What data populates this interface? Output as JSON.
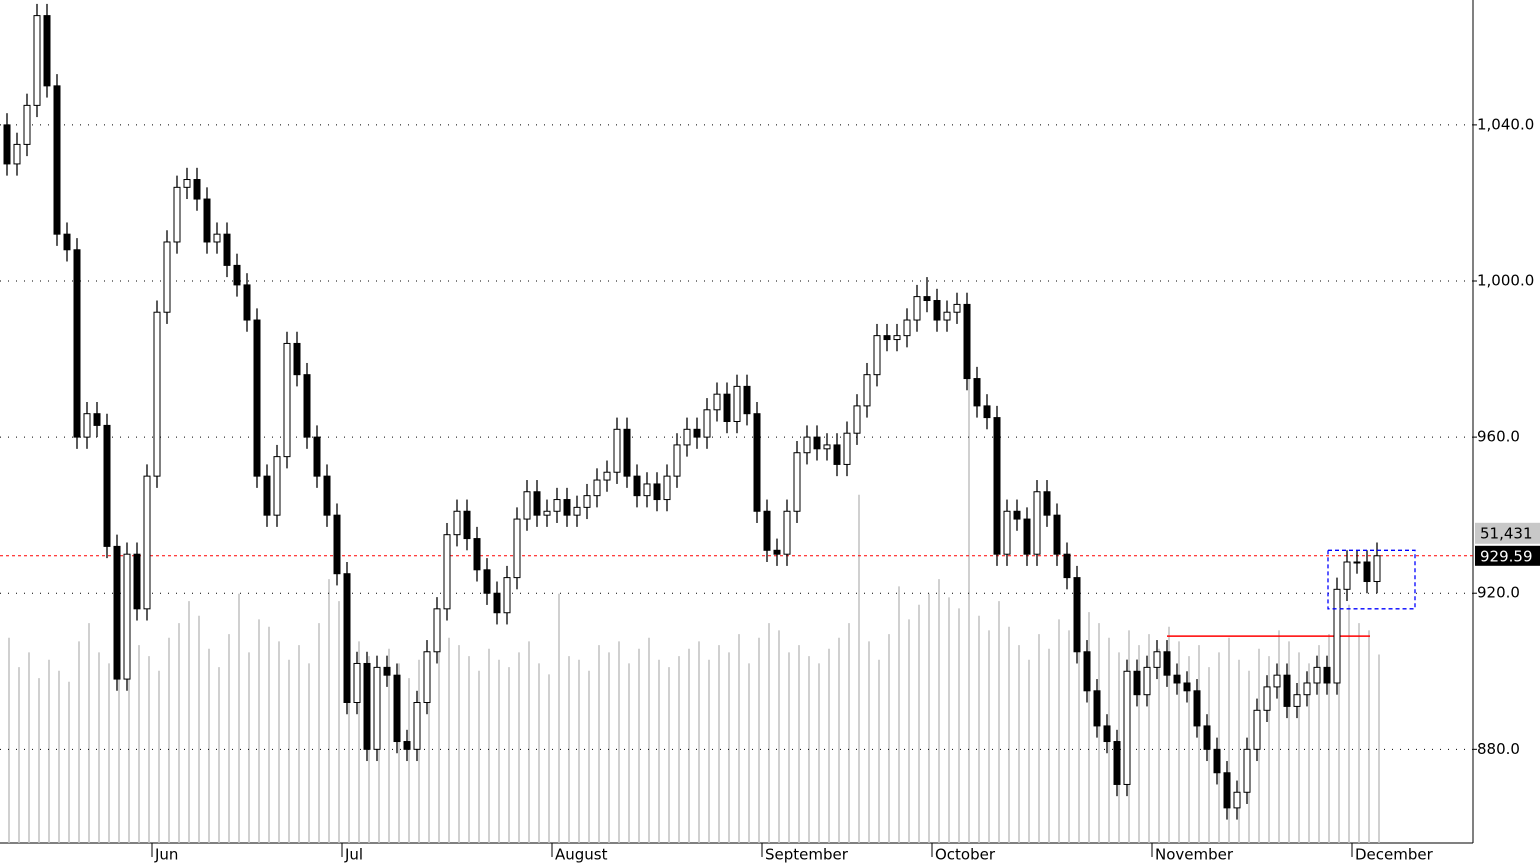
{
  "chart_data": {
    "type": "candlestick",
    "categories": [
      null,
      null,
      null,
      null,
      null,
      null,
      null,
      null,
      null,
      null,
      null,
      null,
      null,
      null,
      null,
      "Jun",
      null,
      null,
      null,
      null,
      null,
      null,
      null,
      null,
      null,
      null,
      null,
      null,
      null,
      null,
      null,
      null,
      null,
      null,
      "Jul",
      null,
      null,
      null,
      null,
      null,
      null,
      null,
      null,
      null,
      null,
      null,
      null,
      null,
      null,
      null,
      null,
      null,
      null,
      null,
      null,
      "August",
      null,
      null,
      null,
      null,
      null,
      null,
      null,
      null,
      null,
      null,
      null,
      null,
      null,
      null,
      null,
      null,
      null,
      null,
      null,
      null,
      "September",
      null,
      null,
      null,
      null,
      null,
      null,
      null,
      null,
      null,
      null,
      null,
      null,
      null,
      null,
      null,
      null,
      "October",
      null,
      null,
      null,
      null,
      null,
      null,
      null,
      null,
      null,
      null,
      null,
      null,
      null,
      null,
      null,
      null,
      null,
      null,
      null,
      null,
      null,
      "November",
      null,
      null,
      null,
      null,
      null,
      null,
      null,
      null,
      null,
      null,
      null,
      null,
      null,
      null,
      null,
      null,
      null,
      null,
      null,
      "December",
      null,
      null
    ],
    "open": [
      1040,
      1030,
      1035,
      1045,
      1068,
      1050,
      1012,
      1008,
      960,
      966,
      963,
      932,
      898,
      930,
      916,
      950,
      992,
      1010,
      1024,
      1026,
      1021,
      1010,
      1012,
      1004,
      999,
      990,
      950,
      940,
      955,
      984,
      976,
      960,
      950,
      940,
      925,
      892,
      902,
      880,
      901,
      899,
      882,
      880,
      892,
      905,
      916,
      935,
      941,
      934,
      926,
      920,
      915,
      924,
      939,
      946,
      940,
      941,
      944,
      940,
      942,
      945,
      949,
      951,
      962,
      950,
      945,
      948,
      944,
      950,
      958,
      962,
      960,
      967,
      971,
      964,
      973,
      966,
      941,
      931,
      930,
      941,
      956,
      960,
      957,
      958,
      953,
      961,
      968,
      976,
      986,
      985,
      986,
      990,
      996,
      995,
      990,
      992,
      994,
      975,
      968,
      965,
      930,
      941,
      939,
      930,
      946,
      940,
      930,
      924,
      905,
      895,
      886,
      882,
      871,
      900,
      894,
      901,
      905,
      899,
      897,
      895,
      886,
      880,
      874,
      865,
      869,
      880,
      890,
      896,
      899,
      891,
      894,
      897,
      901,
      897,
      921,
      928,
      928,
      923
    ],
    "high": [
      1043,
      1038,
      1048,
      1071,
      1071,
      1053,
      1015,
      1011,
      969,
      969,
      966,
      935,
      933,
      933,
      953,
      995,
      1013,
      1027,
      1029,
      1029,
      1024,
      1015,
      1015,
      1007,
      1002,
      993,
      953,
      958,
      987,
      987,
      979,
      963,
      953,
      943,
      928,
      905,
      905,
      904,
      904,
      902,
      885,
      895,
      908,
      919,
      938,
      944,
      944,
      937,
      929,
      923,
      927,
      942,
      949,
      949,
      944,
      947,
      947,
      945,
      948,
      952,
      954,
      965,
      965,
      953,
      951,
      951,
      953,
      961,
      965,
      965,
      970,
      974,
      974,
      976,
      976,
      969,
      944,
      934,
      944,
      959,
      963,
      963,
      961,
      961,
      964,
      971,
      979,
      989,
      989,
      989,
      993,
      999,
      1001,
      998,
      995,
      997,
      997,
      978,
      971,
      968,
      944,
      944,
      942,
      949,
      949,
      943,
      933,
      927,
      908,
      898,
      889,
      885,
      903,
      903,
      904,
      908,
      908,
      902,
      900,
      898,
      889,
      883,
      877,
      872,
      883,
      893,
      899,
      902,
      902,
      897,
      900,
      904,
      904,
      924,
      931,
      931,
      931,
      933
    ],
    "low": [
      1027,
      1027,
      1032,
      1042,
      1047,
      1009,
      1005,
      957,
      957,
      960,
      929,
      895,
      895,
      913,
      913,
      947,
      989,
      1007,
      1021,
      1018,
      1007,
      1007,
      1001,
      996,
      987,
      947,
      937,
      937,
      952,
      973,
      957,
      947,
      937,
      922,
      889,
      889,
      877,
      877,
      896,
      879,
      877,
      877,
      889,
      902,
      913,
      932,
      931,
      923,
      917,
      912,
      912,
      921,
      936,
      937,
      937,
      938,
      937,
      937,
      939,
      942,
      946,
      948,
      947,
      942,
      942,
      941,
      941,
      947,
      955,
      957,
      957,
      964,
      961,
      961,
      963,
      938,
      928,
      927,
      927,
      938,
      953,
      954,
      954,
      950,
      950,
      958,
      965,
      973,
      982,
      982,
      983,
      987,
      992,
      987,
      987,
      989,
      972,
      965,
      962,
      927,
      927,
      936,
      927,
      927,
      937,
      927,
      921,
      902,
      892,
      883,
      879,
      868,
      868,
      891,
      891,
      898,
      896,
      894,
      892,
      883,
      877,
      871,
      862,
      862,
      866,
      877,
      887,
      893,
      888,
      888,
      891,
      894,
      894,
      894,
      918,
      925,
      920,
      920
    ],
    "close": [
      1030,
      1035,
      1045,
      1068,
      1050,
      1012,
      1008,
      960,
      966,
      963,
      932,
      898,
      930,
      916,
      950,
      992,
      1010,
      1024,
      1026,
      1021,
      1010,
      1012,
      1004,
      999,
      990,
      950,
      940,
      955,
      984,
      976,
      960,
      950,
      940,
      925,
      892,
      902,
      880,
      901,
      899,
      882,
      880,
      892,
      905,
      916,
      935,
      941,
      934,
      926,
      920,
      915,
      924,
      939,
      946,
      940,
      941,
      944,
      940,
      942,
      945,
      949,
      951,
      962,
      950,
      945,
      948,
      944,
      950,
      958,
      962,
      960,
      967,
      971,
      964,
      973,
      966,
      941,
      931,
      930,
      941,
      956,
      960,
      957,
      958,
      953,
      961,
      968,
      976,
      986,
      985,
      986,
      990,
      996,
      995,
      990,
      992,
      994,
      975,
      968,
      965,
      930,
      941,
      939,
      930,
      946,
      940,
      930,
      924,
      905,
      895,
      886,
      882,
      871,
      900,
      894,
      901,
      905,
      899,
      897,
      895,
      886,
      880,
      874,
      865,
      869,
      880,
      890,
      896,
      899,
      891,
      894,
      897,
      901,
      897,
      921,
      928,
      928,
      923,
      929.59
    ],
    "volume": [
      56000,
      48000,
      52000,
      45000,
      50000,
      47000,
      44000,
      55000,
      60000,
      52000,
      49000,
      63000,
      58000,
      54000,
      51000,
      47000,
      56000,
      60000,
      66000,
      62000,
      53000,
      48000,
      57000,
      68000,
      52000,
      61000,
      59000,
      55000,
      50000,
      54000,
      49000,
      60000,
      72000,
      66000,
      58000,
      55000,
      51000,
      47000,
      53000,
      49000,
      45000,
      50000,
      48000,
      52000,
      56000,
      54000,
      51000,
      47000,
      53000,
      50000,
      48000,
      52000,
      55000,
      49000,
      46000,
      68000,
      51000,
      50000,
      47000,
      54000,
      52000,
      55000,
      49000,
      53000,
      56000,
      50000,
      48000,
      51000,
      53000,
      55000,
      50000,
      54000,
      52000,
      57000,
      49000,
      56000,
      60000,
      58000,
      52000,
      54000,
      51000,
      49000,
      53000,
      56000,
      60000,
      95000,
      55000,
      50000,
      57000,
      70000,
      61000,
      65000,
      68000,
      72000,
      67000,
      64000,
      129000,
      62000,
      58000,
      66000,
      59000,
      54000,
      50000,
      57000,
      53000,
      61000,
      58000,
      55000,
      63000,
      60000,
      56000,
      52000,
      58000,
      54000,
      57000,
      53000,
      59000,
      55000,
      51000,
      54000,
      48000,
      52000,
      56000,
      50000,
      47000,
      53000,
      51000,
      58000,
      55000,
      52000,
      49000,
      54000,
      57000,
      55000,
      65000,
      60000,
      58000,
      51431
    ],
    "ylim": [
      856,
      1072
    ],
    "yticks": [
      {
        "value": 880,
        "label": "880.0"
      },
      {
        "value": 920,
        "label": "920.0"
      },
      {
        "value": 960,
        "label": "960.0"
      },
      {
        "value": 1000,
        "label": "1,000.0"
      },
      {
        "value": 1040,
        "label": "1,040.0"
      }
    ],
    "volume_lim": [
      0,
      230000
    ],
    "grid": true,
    "up_color": "#ffffff",
    "down_color": "#000000",
    "volume_color": "#c0c0c0",
    "close_label": "929.59",
    "volume_label": "51,431",
    "last_price_line_color": "#ff0000",
    "resistance": {
      "value": 909,
      "start": 116,
      "end": 137,
      "color": "#ff0000"
    },
    "highlight": {
      "start": 133,
      "end": 137,
      "low": 916,
      "high": 931,
      "color": "#0000ff"
    }
  }
}
